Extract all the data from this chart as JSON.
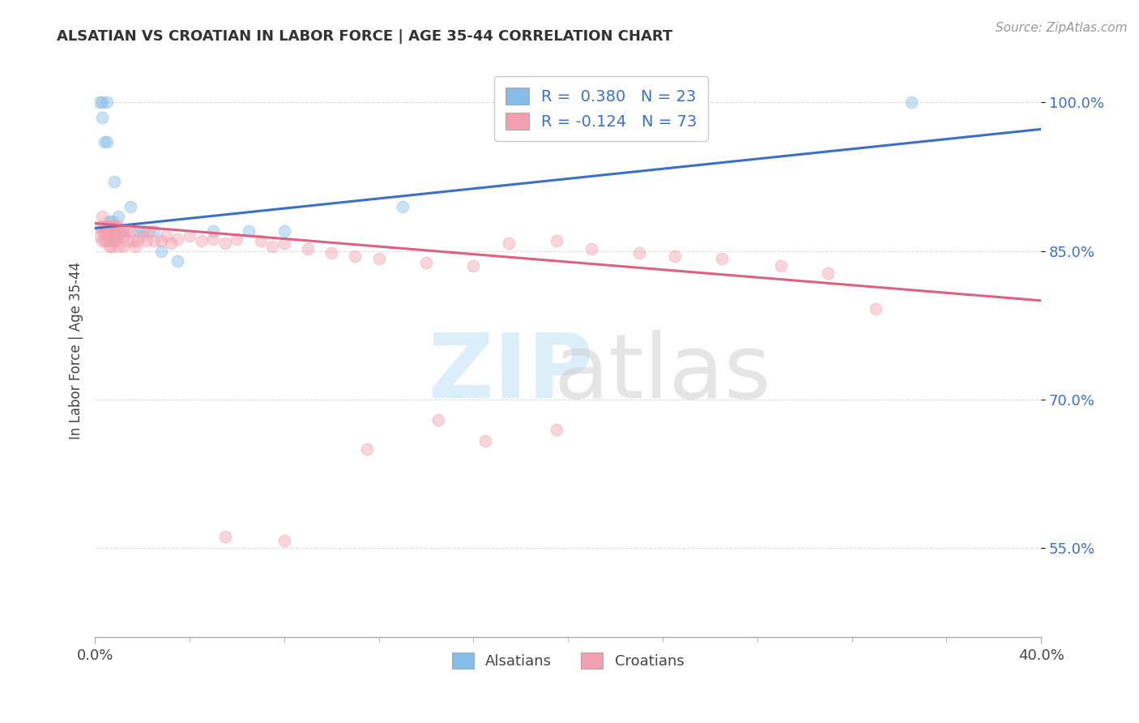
{
  "title": "ALSATIAN VS CROATIAN IN LABOR FORCE | AGE 35-44 CORRELATION CHART",
  "source_text": "Source: ZipAtlas.com",
  "ylabel": "In Labor Force | Age 35-44",
  "xlim": [
    0.0,
    0.4
  ],
  "ylim": [
    0.46,
    1.04
  ],
  "ytick_positions": [
    0.55,
    0.7,
    0.85,
    1.0
  ],
  "ytick_labels": [
    "55.0%",
    "70.0%",
    "85.0%",
    "100.0%"
  ],
  "legend_blue_label": "R =  0.380   N = 23",
  "legend_pink_label": "R = -0.124   N = 73",
  "blue_color": "#85BDE8",
  "pink_color": "#F2A0B0",
  "blue_line_color": "#3A70C8",
  "pink_line_color": "#E06080",
  "legend_text_color": "#3A70C8",
  "alsatian_x": [
    0.002,
    0.003,
    0.003,
    0.004,
    0.005,
    0.005,
    0.006,
    0.007,
    0.008,
    0.009,
    0.01,
    0.012,
    0.015,
    0.018,
    0.02,
    0.025,
    0.028,
    0.035,
    0.05,
    0.065,
    0.08,
    0.13,
    0.345
  ],
  "alsatian_y": [
    1.0,
    0.985,
    1.0,
    0.96,
    0.96,
    1.0,
    0.88,
    0.88,
    0.92,
    0.865,
    0.885,
    0.87,
    0.895,
    0.87,
    0.87,
    0.87,
    0.85,
    0.84,
    0.87,
    0.87,
    0.87,
    0.895,
    1.0
  ],
  "croatian_x": [
    0.002,
    0.002,
    0.003,
    0.003,
    0.003,
    0.004,
    0.004,
    0.004,
    0.005,
    0.005,
    0.005,
    0.005,
    0.006,
    0.006,
    0.006,
    0.007,
    0.007,
    0.007,
    0.007,
    0.008,
    0.008,
    0.008,
    0.009,
    0.009,
    0.01,
    0.01,
    0.01,
    0.011,
    0.012,
    0.012,
    0.013,
    0.014,
    0.015,
    0.016,
    0.017,
    0.018,
    0.02,
    0.022,
    0.023,
    0.025,
    0.028,
    0.03,
    0.032,
    0.035,
    0.04,
    0.045,
    0.05,
    0.055,
    0.06,
    0.07,
    0.075,
    0.08,
    0.09,
    0.1,
    0.11,
    0.12,
    0.14,
    0.16,
    0.175,
    0.195,
    0.21,
    0.23,
    0.245,
    0.265,
    0.29,
    0.31,
    0.055,
    0.08,
    0.115,
    0.145,
    0.165,
    0.195,
    0.33
  ],
  "croatian_y": [
    0.875,
    0.865,
    0.885,
    0.87,
    0.86,
    0.875,
    0.87,
    0.86,
    0.875,
    0.87,
    0.865,
    0.86,
    0.875,
    0.865,
    0.855,
    0.87,
    0.86,
    0.875,
    0.855,
    0.875,
    0.87,
    0.86,
    0.875,
    0.86,
    0.875,
    0.865,
    0.855,
    0.87,
    0.865,
    0.855,
    0.87,
    0.86,
    0.87,
    0.86,
    0.855,
    0.86,
    0.865,
    0.86,
    0.87,
    0.86,
    0.86,
    0.865,
    0.858,
    0.862,
    0.865,
    0.86,
    0.862,
    0.858,
    0.862,
    0.86,
    0.855,
    0.858,
    0.852,
    0.848,
    0.845,
    0.842,
    0.838,
    0.835,
    0.858,
    0.86,
    0.852,
    0.848,
    0.845,
    0.842,
    0.835,
    0.828,
    0.562,
    0.558,
    0.65,
    0.68,
    0.658,
    0.67,
    0.792
  ],
  "blue_trend_x": [
    0.0,
    0.4
  ],
  "blue_trend_y": [
    0.873,
    0.973
  ],
  "pink_trend_x": [
    0.0,
    0.4
  ],
  "pink_trend_y": [
    0.878,
    0.8
  ],
  "background_color": "#FFFFFF",
  "grid_color": "#DDDDDD",
  "marker_size": 110,
  "marker_alpha": 0.45
}
